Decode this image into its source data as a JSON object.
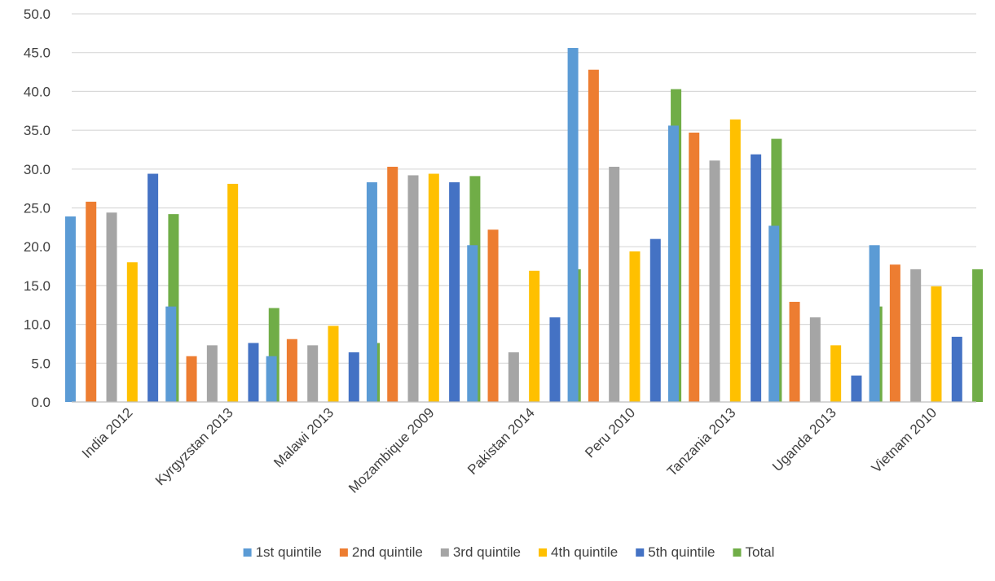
{
  "chart_data": {
    "type": "bar",
    "title": "",
    "xlabel": "",
    "ylabel": "",
    "ylim": [
      0,
      50
    ],
    "ytick_step": 5,
    "ytick_format": "0.0",
    "grid": true,
    "legend_position": "bottom",
    "categories": [
      "India 2012",
      "Kyrgyzstan 2013",
      "Malawi 2013",
      "Mozambique 2009",
      "Pakistan 2014",
      "Peru 2010",
      "Tanzania 2013",
      "Uganda 2013",
      "Vietnam 2010"
    ],
    "series": [
      {
        "name": "1st quintile",
        "color": "#5b9bd5",
        "values": [
          23.9,
          12.3,
          5.9,
          28.3,
          20.2,
          45.6,
          35.6,
          22.7,
          20.2
        ]
      },
      {
        "name": "2nd quintile",
        "color": "#ed7d31",
        "values": [
          25.8,
          5.9,
          8.1,
          30.3,
          22.2,
          42.8,
          34.7,
          12.9,
          17.7
        ]
      },
      {
        "name": "3rd quintile",
        "color": "#a5a5a5",
        "values": [
          24.4,
          7.3,
          7.3,
          29.2,
          6.4,
          30.3,
          31.1,
          10.9,
          17.1
        ]
      },
      {
        "name": "4th quintile",
        "color": "#ffc000",
        "values": [
          18.0,
          28.1,
          9.8,
          29.4,
          16.9,
          19.4,
          36.4,
          7.3,
          14.9
        ]
      },
      {
        "name": "5th quintile",
        "color": "#4472c4",
        "values": [
          29.4,
          7.6,
          6.4,
          28.3,
          10.9,
          21.0,
          31.9,
          3.4,
          8.4
        ]
      },
      {
        "name": "Total",
        "color": "#70ad47",
        "values": [
          24.2,
          12.1,
          7.6,
          29.1,
          17.1,
          40.3,
          33.9,
          12.3,
          17.1
        ]
      }
    ]
  }
}
